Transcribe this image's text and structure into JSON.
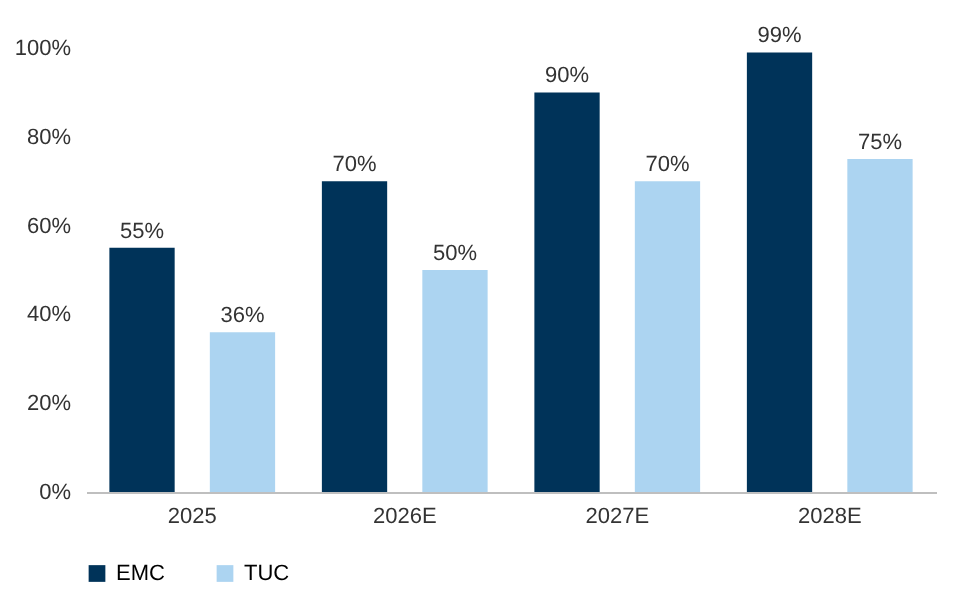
{
  "chart_data": {
    "type": "bar",
    "categories": [
      "2025",
      "2026E",
      "2027E",
      "2028E"
    ],
    "series": [
      {
        "name": "EMC",
        "color": "#003359",
        "values": [
          55,
          70,
          90,
          99
        ],
        "value_labels": [
          "55%",
          "70%",
          "90%",
          "99%"
        ]
      },
      {
        "name": "TUC",
        "color": "#acd4f1",
        "values": [
          36,
          50,
          70,
          75
        ],
        "value_labels": [
          "36%",
          "50%",
          "70%",
          "75%"
        ]
      }
    ],
    "ylim": [
      0,
      100
    ],
    "yticks": [
      {
        "value": 0,
        "label": "0%"
      },
      {
        "value": 20,
        "label": "20%"
      },
      {
        "value": 40,
        "label": "40%"
      },
      {
        "value": 60,
        "label": "60%"
      },
      {
        "value": 80,
        "label": "80%"
      },
      {
        "value": 100,
        "label": "100%"
      }
    ],
    "grid": false,
    "legend": "bottom"
  }
}
